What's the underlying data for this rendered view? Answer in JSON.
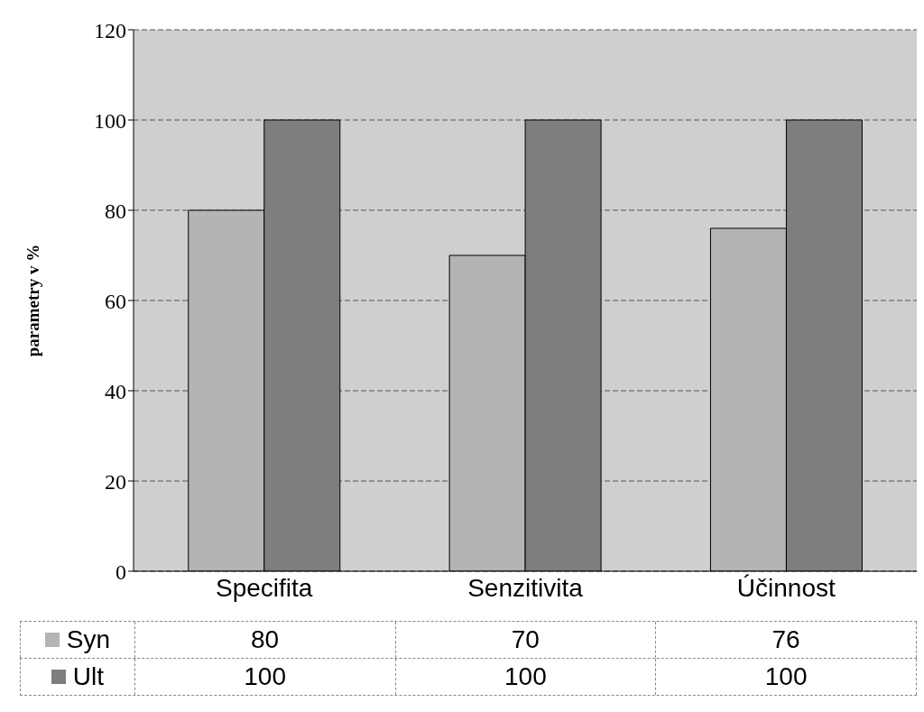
{
  "chart_data": {
    "type": "bar",
    "ylabel": "parametry v %",
    "categories": [
      "Specifita",
      "Senzitivita",
      "Účinnost"
    ],
    "series": [
      {
        "name": "Syn",
        "color": "#b4b4b4",
        "values": [
          80,
          70,
          76
        ]
      },
      {
        "name": "Ult",
        "color": "#7e7e7e",
        "values": [
          100,
          100,
          100
        ]
      }
    ],
    "ylim": [
      0,
      120
    ],
    "yticks": [
      0,
      20,
      40,
      60,
      80,
      100,
      120
    ],
    "grid": "y",
    "legend": "bottom",
    "data_labels": true
  }
}
